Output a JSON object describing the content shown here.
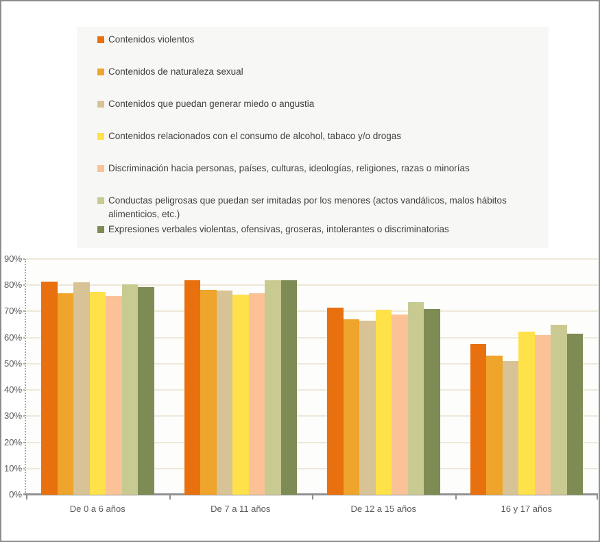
{
  "chart_data": {
    "type": "bar",
    "title": "",
    "xlabel": "",
    "ylabel": "",
    "ylim": [
      0,
      90
    ],
    "grid": true,
    "legend_position": "top",
    "y_ticks": [
      "0%",
      "10%",
      "20%",
      "30%",
      "40%",
      "50%",
      "60%",
      "70%",
      "80%",
      "90%"
    ],
    "categories": [
      "De 0 a 6 años",
      "De 7 a 11 años",
      "De 12 a 15 años",
      "16 y 17 años"
    ],
    "series": [
      {
        "name": "Contenidos violentos",
        "color": "#E8700F",
        "values": [
          81.4,
          82.0,
          71.4,
          57.5
        ]
      },
      {
        "name": "Contenidos de naturaleza sexual",
        "color": "#EFA42B",
        "values": [
          76.8,
          78.2,
          67.0,
          53.1
        ]
      },
      {
        "name": "Contenidos que puedan generar miedo o angustia",
        "color": "#D8C396",
        "values": [
          81.2,
          78.0,
          66.5,
          51.0
        ]
      },
      {
        "name": "Contenidos relacionados con el consumo de alcohol, tabaco y/o drogas",
        "color": "#FFE14A",
        "values": [
          77.5,
          76.4,
          70.7,
          62.3
        ]
      },
      {
        "name": "Discriminación hacia personas, países, culturas, ideologías, religiones, razas o minorías",
        "color": "#FAC296",
        "values": [
          75.8,
          76.8,
          68.8,
          61.0
        ]
      },
      {
        "name": "Conductas peligrosas que puedan ser imitadas por los menores (actos vandálicos, malos hábitos alimenticios, etc.)",
        "color": "#C8CA92",
        "values": [
          80.2,
          81.9,
          73.6,
          64.9
        ]
      },
      {
        "name": "Expresiones verbales violentas, ofensivas, groseras, intolerantes o discriminatorias",
        "color": "#7E8B55",
        "values": [
          79.4,
          81.9,
          71.0,
          61.4
        ]
      }
    ]
  },
  "style_colors": {
    "legend_background": "#f7f7f6",
    "gridline": "#efe8d8",
    "axis_line": "#8f8f8f",
    "axis_text": "#595959",
    "legend_text": "#3f3f3f"
  }
}
